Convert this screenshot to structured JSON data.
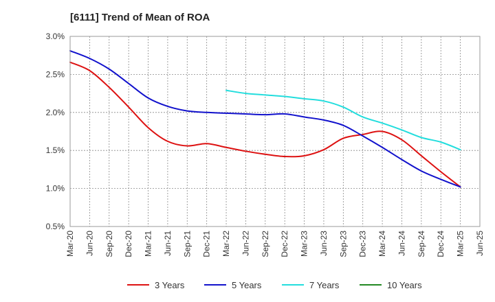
{
  "chart_data": {
    "type": "line",
    "title": "[6111]  Trend of Mean of ROA",
    "x_labels": [
      "Mar-20",
      "Jun-20",
      "Sep-20",
      "Dec-20",
      "Mar-21",
      "Jun-21",
      "Sep-21",
      "Dec-21",
      "Mar-22",
      "Jun-22",
      "Sep-22",
      "Dec-22",
      "Mar-23",
      "Jun-23",
      "Sep-23",
      "Dec-23",
      "Mar-24",
      "Jun-24",
      "Sep-24",
      "Dec-24",
      "Mar-25",
      "Jun-25"
    ],
    "y_ticks": [
      0.5,
      1.0,
      1.5,
      2.0,
      2.5,
      3.0
    ],
    "y_tick_labels": [
      "0.5%",
      "1.0%",
      "1.5%",
      "2.0%",
      "2.5%",
      "3.0%"
    ],
    "ylim": [
      0.5,
      3.0
    ],
    "grid": true,
    "legend_position": "bottom",
    "series": [
      {
        "name": "3 Years",
        "color": "#dd1111",
        "values": [
          2.66,
          2.55,
          2.33,
          2.07,
          1.8,
          1.62,
          1.56,
          1.59,
          1.54,
          1.49,
          1.45,
          1.42,
          1.43,
          1.51,
          1.66,
          1.71,
          1.75,
          1.64,
          1.43,
          1.22,
          1.02,
          null
        ]
      },
      {
        "name": "5 Years",
        "color": "#1111cc",
        "values": [
          2.81,
          2.71,
          2.57,
          2.38,
          2.19,
          2.08,
          2.02,
          2.0,
          1.99,
          1.98,
          1.97,
          1.98,
          1.94,
          1.9,
          1.83,
          1.69,
          1.54,
          1.38,
          1.23,
          1.12,
          1.02,
          null
        ]
      },
      {
        "name": "7 Years",
        "color": "#22dddd",
        "values": [
          null,
          null,
          null,
          null,
          null,
          null,
          null,
          null,
          2.29,
          2.25,
          2.23,
          2.21,
          2.18,
          2.15,
          2.07,
          1.94,
          1.86,
          1.77,
          1.67,
          1.61,
          1.51,
          null
        ]
      },
      {
        "name": "10 Years",
        "color": "#228822",
        "values": [
          null,
          null,
          null,
          null,
          null,
          null,
          null,
          null,
          null,
          null,
          null,
          null,
          null,
          null,
          null,
          null,
          null,
          null,
          null,
          null,
          null,
          null
        ]
      }
    ]
  }
}
